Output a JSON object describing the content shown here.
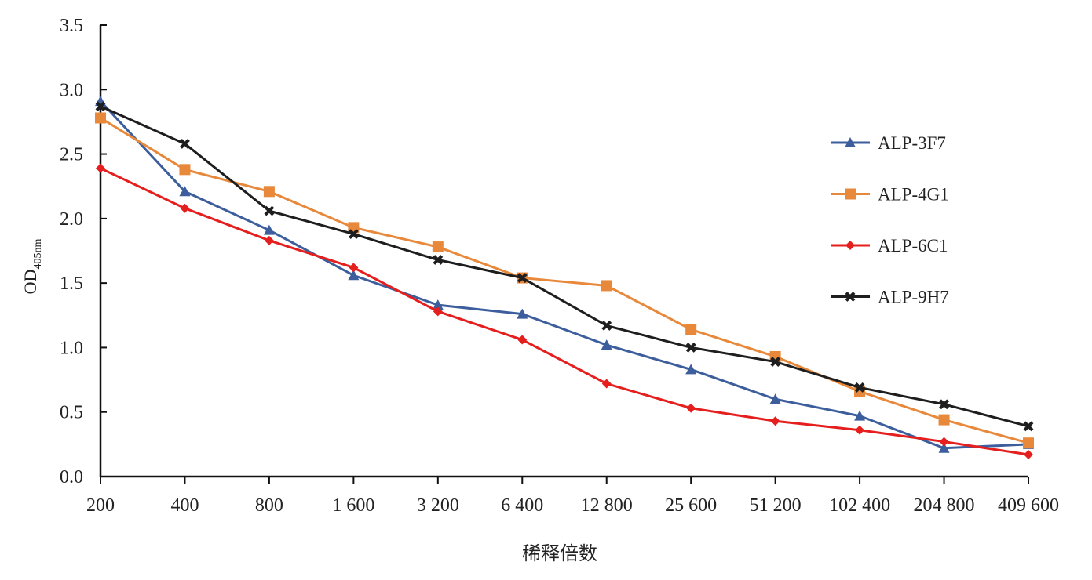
{
  "chart_data": {
    "type": "line",
    "title": "",
    "xlabel": "稀释倍数",
    "ylabel": "OD",
    "ylabel_sub": "405nm",
    "ylim": [
      0,
      3.5
    ],
    "yticks": [
      "0.0",
      "0.5",
      "1.0",
      "1.5",
      "2.0",
      "2.5",
      "3.0",
      "3.5"
    ],
    "grid": false,
    "legend_position": "right",
    "categories": [
      "200",
      "400",
      "800",
      "1 600",
      "3 200",
      "6 400",
      "12 800",
      "25 600",
      "51 200",
      "102 400",
      "204 800",
      "409 600"
    ],
    "series": [
      {
        "name": "ALP-3F7",
        "color": "#3d5e9c",
        "marker": "triangle",
        "values": [
          2.91,
          2.21,
          1.91,
          1.56,
          1.33,
          1.26,
          1.02,
          0.83,
          0.6,
          0.47,
          0.22,
          0.25
        ]
      },
      {
        "name": "ALP-4G1",
        "color": "#e8883a",
        "marker": "square",
        "values": [
          2.78,
          2.38,
          2.21,
          1.93,
          1.78,
          1.54,
          1.48,
          1.14,
          0.93,
          0.66,
          0.44,
          0.26
        ]
      },
      {
        "name": "ALP-6C1",
        "color": "#e51e1e",
        "marker": "diamond",
        "values": [
          2.39,
          2.08,
          1.83,
          1.62,
          1.28,
          1.06,
          0.72,
          0.53,
          0.43,
          0.36,
          0.27,
          0.17
        ]
      },
      {
        "name": "ALP-9H7",
        "color": "#1e1e1e",
        "marker": "x",
        "values": [
          2.87,
          2.58,
          2.06,
          1.88,
          1.68,
          1.54,
          1.17,
          1.0,
          0.89,
          0.69,
          0.56,
          0.39
        ]
      }
    ]
  }
}
